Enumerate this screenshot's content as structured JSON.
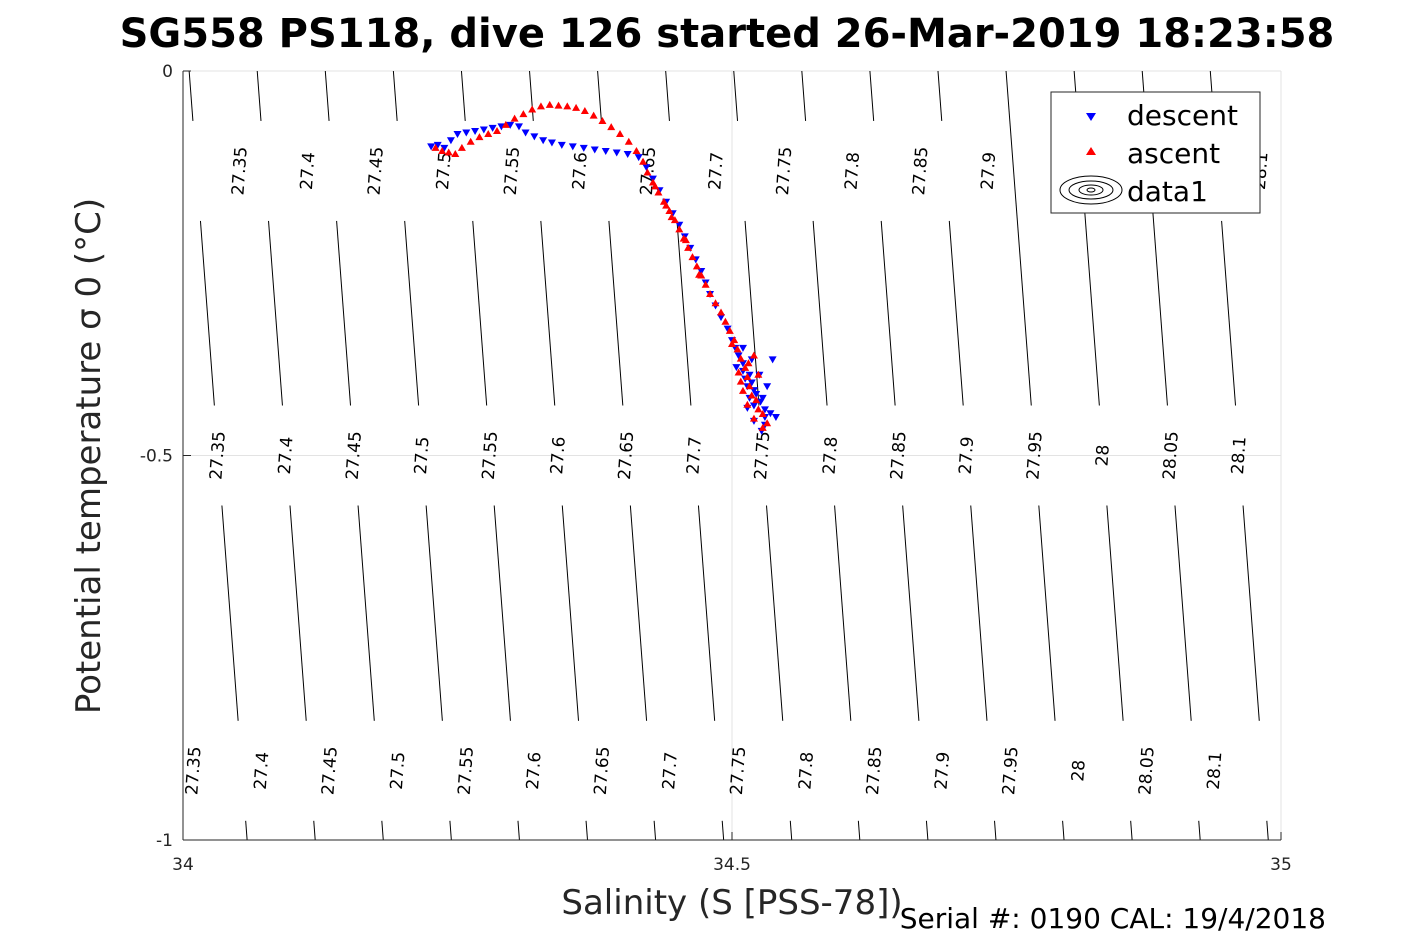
{
  "chart_data": {
    "type": "scatter",
    "title": "SG558 PS118, dive 126 started 26-Mar-2019 18:23:58",
    "xlabel": "Salinity (S [PSS-78])",
    "ylabel": "Potential temperature σ 0 (°C)",
    "xlim": [
      34,
      35
    ],
    "ylim": [
      -1,
      0
    ],
    "xticks": [
      34,
      34.5,
      35
    ],
    "xtick_labels": [
      "34",
      "34.5",
      "35"
    ],
    "yticks": [
      0,
      -0.5,
      -1
    ],
    "ytick_labels": [
      "0",
      "-0.5",
      "-1"
    ],
    "grid": true,
    "legend_placement": "top-right",
    "footer": "Serial #: 0190  CAL: 19/4/2018",
    "legend": [
      {
        "label": "descent",
        "marker": "triangle-down",
        "color": "#0000ff"
      },
      {
        "label": "ascent",
        "marker": "triangle-up",
        "color": "#ff0000"
      },
      {
        "label": "data1",
        "marker": "contour",
        "color": "#000000"
      }
    ],
    "contours": {
      "label_rows_temperature": [
        -0.13,
        -0.5,
        -0.91
      ],
      "top_row": [
        {
          "label": "27.35",
          "salinity": 34.052
        },
        {
          "label": "27.4",
          "salinity": 34.114
        },
        {
          "label": "27.45",
          "salinity": 34.176
        },
        {
          "label": "27.5",
          "salinity": 34.238
        },
        {
          "label": "27.55",
          "salinity": 34.3
        },
        {
          "label": "27.6",
          "salinity": 34.362
        },
        {
          "label": "27.65",
          "salinity": 34.424
        },
        {
          "label": "27.7",
          "salinity": 34.486
        },
        {
          "label": "27.75",
          "salinity": 34.548
        },
        {
          "label": "27.8",
          "salinity": 34.61
        },
        {
          "label": "27.85",
          "salinity": 34.672
        },
        {
          "label": "27.9",
          "salinity": 34.734
        },
        {
          "label": "28.1",
          "salinity": 34.982
        }
      ],
      "middle_row": [
        {
          "label": "27.35",
          "salinity": 34.032
        },
        {
          "label": "27.4",
          "salinity": 34.094
        },
        {
          "label": "27.45",
          "salinity": 34.156
        },
        {
          "label": "27.5",
          "salinity": 34.218
        },
        {
          "label": "27.55",
          "salinity": 34.28
        },
        {
          "label": "27.6",
          "salinity": 34.342
        },
        {
          "label": "27.65",
          "salinity": 34.404
        },
        {
          "label": "27.7",
          "salinity": 34.466
        },
        {
          "label": "27.75",
          "salinity": 34.528
        },
        {
          "label": "27.8",
          "salinity": 34.59
        },
        {
          "label": "27.85",
          "salinity": 34.652
        },
        {
          "label": "27.9",
          "salinity": 34.714
        },
        {
          "label": "27.95",
          "salinity": 34.776
        },
        {
          "label": "28",
          "salinity": 34.838
        },
        {
          "label": "28.05",
          "salinity": 34.9
        },
        {
          "label": "28.1",
          "salinity": 34.962
        }
      ],
      "bottom_row": [
        {
          "label": "27.35",
          "salinity": 34.01
        },
        {
          "label": "27.4",
          "salinity": 34.072
        },
        {
          "label": "27.45",
          "salinity": 34.134
        },
        {
          "label": "27.5",
          "salinity": 34.196
        },
        {
          "label": "27.55",
          "salinity": 34.258
        },
        {
          "label": "27.6",
          "salinity": 34.32
        },
        {
          "label": "27.65",
          "salinity": 34.382
        },
        {
          "label": "27.7",
          "salinity": 34.444
        },
        {
          "label": "27.75",
          "salinity": 34.506
        },
        {
          "label": "27.8",
          "salinity": 34.568
        },
        {
          "label": "27.85",
          "salinity": 34.63
        },
        {
          "label": "27.9",
          "salinity": 34.692
        },
        {
          "label": "27.95",
          "salinity": 34.754
        },
        {
          "label": "28",
          "salinity": 34.816
        },
        {
          "label": "28.05",
          "salinity": 34.878
        },
        {
          "label": "28.1",
          "salinity": 34.94
        }
      ]
    },
    "series": [
      {
        "name": "descent",
        "color": "#0000ff",
        "points": [
          [
            34.226,
            -0.098
          ],
          [
            34.232,
            -0.096
          ],
          [
            34.238,
            -0.1
          ],
          [
            34.244,
            -0.09
          ],
          [
            34.25,
            -0.082
          ],
          [
            34.258,
            -0.08
          ],
          [
            34.266,
            -0.078
          ],
          [
            34.274,
            -0.076
          ],
          [
            34.282,
            -0.074
          ],
          [
            34.29,
            -0.072
          ],
          [
            34.298,
            -0.07
          ],
          [
            34.306,
            -0.072
          ],
          [
            34.312,
            -0.08
          ],
          [
            34.32,
            -0.085
          ],
          [
            34.328,
            -0.09
          ],
          [
            34.336,
            -0.093
          ],
          [
            34.345,
            -0.096
          ],
          [
            34.355,
            -0.098
          ],
          [
            34.365,
            -0.1
          ],
          [
            34.375,
            -0.102
          ],
          [
            34.385,
            -0.104
          ],
          [
            34.395,
            -0.106
          ],
          [
            34.405,
            -0.108
          ],
          [
            34.415,
            -0.112
          ],
          [
            34.422,
            -0.125
          ],
          [
            34.428,
            -0.14
          ],
          [
            34.434,
            -0.155
          ],
          [
            34.44,
            -0.17
          ],
          [
            34.446,
            -0.185
          ],
          [
            34.452,
            -0.2
          ],
          [
            34.457,
            -0.215
          ],
          [
            34.462,
            -0.23
          ],
          [
            34.467,
            -0.245
          ],
          [
            34.472,
            -0.26
          ],
          [
            34.476,
            -0.275
          ],
          [
            34.48,
            -0.29
          ],
          [
            34.485,
            -0.305
          ],
          [
            34.49,
            -0.32
          ],
          [
            34.496,
            -0.335
          ],
          [
            34.5,
            -0.35
          ],
          [
            34.503,
            -0.36
          ],
          [
            34.506,
            -0.37
          ],
          [
            34.51,
            -0.38
          ],
          [
            34.504,
            -0.385
          ],
          [
            34.51,
            -0.39
          ],
          [
            34.516,
            -0.395
          ],
          [
            34.512,
            -0.4
          ],
          [
            34.518,
            -0.405
          ],
          [
            34.514,
            -0.41
          ],
          [
            34.52,
            -0.415
          ],
          [
            34.522,
            -0.42
          ],
          [
            34.516,
            -0.425
          ],
          [
            34.526,
            -0.43
          ],
          [
            34.52,
            -0.435
          ],
          [
            34.53,
            -0.44
          ],
          [
            34.535,
            -0.445
          ],
          [
            34.53,
            -0.45
          ],
          [
            34.52,
            -0.455
          ],
          [
            34.53,
            -0.46
          ],
          [
            34.51,
            -0.36
          ],
          [
            34.518,
            -0.375
          ],
          [
            34.525,
            -0.395
          ],
          [
            34.532,
            -0.41
          ],
          [
            34.537,
            -0.375
          ],
          [
            34.528,
            -0.425
          ],
          [
            34.54,
            -0.45
          ],
          [
            34.527,
            -0.468
          ],
          [
            34.514,
            -0.438
          ]
        ]
      },
      {
        "name": "ascent",
        "color": "#ff0000",
        "points": [
          [
            34.23,
            -0.1
          ],
          [
            34.236,
            -0.104
          ],
          [
            34.242,
            -0.106
          ],
          [
            34.248,
            -0.108
          ],
          [
            34.254,
            -0.1
          ],
          [
            34.262,
            -0.092
          ],
          [
            34.27,
            -0.086
          ],
          [
            34.278,
            -0.082
          ],
          [
            34.286,
            -0.078
          ],
          [
            34.294,
            -0.07
          ],
          [
            34.302,
            -0.062
          ],
          [
            34.31,
            -0.056
          ],
          [
            34.318,
            -0.05
          ],
          [
            34.326,
            -0.046
          ],
          [
            34.334,
            -0.044
          ],
          [
            34.342,
            -0.045
          ],
          [
            34.35,
            -0.046
          ],
          [
            34.358,
            -0.048
          ],
          [
            34.366,
            -0.052
          ],
          [
            34.374,
            -0.058
          ],
          [
            34.382,
            -0.065
          ],
          [
            34.39,
            -0.073
          ],
          [
            34.398,
            -0.082
          ],
          [
            34.406,
            -0.092
          ],
          [
            34.413,
            -0.104
          ],
          [
            34.419,
            -0.118
          ],
          [
            34.423,
            -0.132
          ],
          [
            34.428,
            -0.145
          ],
          [
            34.433,
            -0.158
          ],
          [
            34.438,
            -0.17
          ],
          [
            34.443,
            -0.182
          ],
          [
            34.448,
            -0.194
          ],
          [
            34.452,
            -0.206
          ],
          [
            34.456,
            -0.218
          ],
          [
            34.46,
            -0.23
          ],
          [
            34.464,
            -0.242
          ],
          [
            34.468,
            -0.254
          ],
          [
            34.472,
            -0.266
          ],
          [
            34.476,
            -0.278
          ],
          [
            34.48,
            -0.29
          ],
          [
            34.485,
            -0.302
          ],
          [
            34.49,
            -0.314
          ],
          [
            34.494,
            -0.326
          ],
          [
            34.498,
            -0.338
          ],
          [
            34.502,
            -0.35
          ],
          [
            34.505,
            -0.362
          ],
          [
            34.508,
            -0.374
          ],
          [
            34.512,
            -0.386
          ],
          [
            34.506,
            -0.392
          ],
          [
            34.514,
            -0.398
          ],
          [
            34.508,
            -0.404
          ],
          [
            34.516,
            -0.41
          ],
          [
            34.51,
            -0.416
          ],
          [
            34.518,
            -0.422
          ],
          [
            34.522,
            -0.428
          ],
          [
            34.514,
            -0.434
          ],
          [
            34.524,
            -0.44
          ],
          [
            34.528,
            -0.446
          ],
          [
            34.52,
            -0.452
          ],
          [
            34.532,
            -0.458
          ],
          [
            34.528,
            -0.464
          ],
          [
            34.52,
            -0.37
          ],
          [
            34.515,
            -0.38
          ],
          [
            34.524,
            -0.395
          ],
          [
            34.5,
            -0.355
          ],
          [
            34.47,
            -0.265
          ],
          [
            34.458,
            -0.22
          ],
          [
            34.445,
            -0.19
          ],
          [
            34.44,
            -0.175
          ],
          [
            34.43,
            -0.15
          ]
        ]
      }
    ]
  }
}
